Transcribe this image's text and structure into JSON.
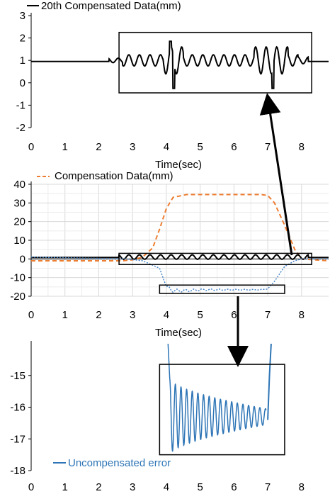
{
  "chart_data": [
    {
      "type": "line",
      "xlim": [
        0,
        8.8
      ],
      "ylim": [
        -2,
        3
      ],
      "xticks": [
        0,
        1,
        2,
        3,
        4,
        5,
        6,
        7,
        8
      ],
      "yticks": [
        -2,
        -1,
        0,
        1,
        2,
        3
      ],
      "xlabel": "Time(sec)",
      "ylabel": "",
      "grid": false,
      "legend_position": "top-left",
      "series": [
        {
          "name": "20th Compensated Data(mm)",
          "color": "#000000",
          "style": "solid",
          "x": [
            0,
            2.2,
            2.5,
            2.7,
            2.8,
            3.0,
            3.2,
            3.4,
            3.6,
            3.8,
            4.0,
            4.1,
            4.2,
            4.3,
            4.5,
            5.0,
            5.5,
            6.0,
            6.5,
            6.8,
            7.0,
            7.15,
            7.3,
            7.5,
            7.7,
            7.9,
            8.0,
            8.2,
            8.8
          ],
          "y": [
            0.95,
            0.95,
            1.05,
            1.15,
            1.2,
            1.1,
            1.25,
            1.35,
            1.2,
            1.25,
            1.7,
            1.85,
            -0.25,
            1.6,
            1.3,
            1.25,
            1.3,
            1.3,
            1.35,
            1.55,
            1.65,
            -0.25,
            1.55,
            1.45,
            1.35,
            1.3,
            1.1,
            0.95,
            0.95
          ]
        }
      ],
      "highlight_box": {
        "x": [
          2.6,
          8.3
        ],
        "y": [
          -0.45,
          2.25
        ]
      }
    },
    {
      "type": "line",
      "xlim": [
        0,
        8.8
      ],
      "ylim": [
        -20,
        40
      ],
      "xticks": [
        0,
        1,
        2,
        3,
        4,
        5,
        6,
        7,
        8
      ],
      "yticks": [
        -20,
        -10,
        0,
        10,
        20,
        30,
        40
      ],
      "xlabel": "Time(sec)",
      "ylabel": "",
      "grid": true,
      "legend_position": "top-left",
      "series": [
        {
          "name": "Compensation Data(mm)",
          "color": "#ed7d31",
          "style": "dashed",
          "x": [
            0,
            2.7,
            3.0,
            3.3,
            3.6,
            3.8,
            4.0,
            4.2,
            4.6,
            5.0,
            6.0,
            6.8,
            7.0,
            7.2,
            7.5,
            7.8,
            8.0,
            8.8
          ],
          "y": [
            -1,
            -1,
            -0.5,
            1,
            6,
            16,
            27,
            33,
            34.5,
            34.5,
            34.5,
            34.5,
            34,
            30,
            18,
            5,
            0,
            -1
          ]
        },
        {
          "name": "",
          "color": "#000000",
          "style": "solid",
          "x": [
            0,
            2.6,
            3.0,
            3.5,
            4.0,
            4.5,
            5.0,
            5.5,
            6.0,
            6.5,
            7.0,
            7.5,
            8.0,
            8.8
          ],
          "y": [
            1,
            1,
            0,
            0.3,
            1,
            1,
            1,
            1,
            1,
            1,
            1,
            0,
            0.5,
            1
          ]
        },
        {
          "name": "",
          "color": "#4a86c8",
          "style": "dotted",
          "x": [
            0,
            2.8,
            3.3,
            3.8,
            4.0,
            4.2,
            4.6,
            5.0,
            6.0,
            6.8,
            7.0,
            7.2,
            7.5,
            7.8,
            8.0,
            8.8
          ],
          "y": [
            1,
            0,
            -1,
            -5,
            -15,
            -17,
            -17,
            -16.5,
            -16.5,
            -16.5,
            -16,
            -12,
            -4,
            -1,
            0,
            0
          ]
        }
      ],
      "highlight_boxes": [
        {
          "x": [
            2.6,
            8.3
          ],
          "y": [
            -3,
            3
          ]
        },
        {
          "x": [
            3.8,
            7.5
          ],
          "y": [
            -18.5,
            -14
          ]
        }
      ]
    },
    {
      "type": "line",
      "xlim": [
        0,
        8.8
      ],
      "ylim": [
        -18,
        -14
      ],
      "xticks": [
        0,
        1,
        2,
        3,
        4,
        5,
        6,
        7,
        8
      ],
      "yticks": [
        -18,
        -17,
        -16,
        -15
      ],
      "xlabel": "",
      "ylabel": "",
      "grid": false,
      "legend_position": "bottom-left",
      "series": [
        {
          "name": "Uncompensated error",
          "color": "#2e75b6",
          "style": "solid",
          "x_start": 4.1,
          "x_end": 6.95,
          "y_center": -16.3,
          "amplitude_start": 1.2,
          "amplitude_end": 0.25
        },
        {
          "name": "",
          "color": "#2e75b6",
          "style": "solid",
          "x": [
            7.0,
            7.05,
            7.1
          ],
          "y": [
            -16.4,
            -15.0,
            -14.0
          ]
        }
      ],
      "highlight_box": {
        "x": [
          3.8,
          7.5
        ],
        "y": [
          -17.5,
          -14.65
        ]
      }
    }
  ]
}
